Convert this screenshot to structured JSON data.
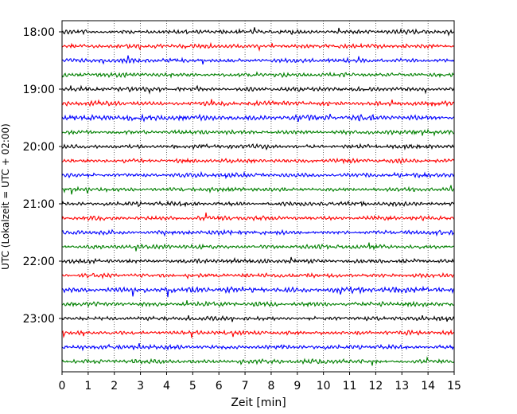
{
  "chart_data": {
    "type": "line",
    "title": "",
    "xlabel": "Zeit  [min]",
    "ylabel": "UTC (Lokalzeit = UTC + 02:00)",
    "xlim": [
      0,
      15
    ],
    "x_ticks": [
      "0",
      "1",
      "2",
      "3",
      "4",
      "5",
      "6",
      "7",
      "8",
      "9",
      "10",
      "11",
      "12",
      "13",
      "14",
      "15"
    ],
    "y_ticks": [
      "18:00",
      "19:00",
      "20:00",
      "21:00",
      "22:00",
      "23:00"
    ],
    "grid": "vertical dotted",
    "trace_colors": [
      "#000000",
      "#ff0000",
      "#0000ff",
      "#008000"
    ],
    "trace_amplitudes": [
      1.0,
      1.0,
      1.0,
      1.0,
      1.0,
      1.1,
      1.3,
      1.0,
      1.0,
      1.0,
      1.0,
      1.0,
      1.0,
      1.0,
      1.0,
      1.0,
      1.0,
      1.0,
      1.4,
      1.1,
      1.0,
      1.0,
      1.0,
      1.0
    ]
  }
}
